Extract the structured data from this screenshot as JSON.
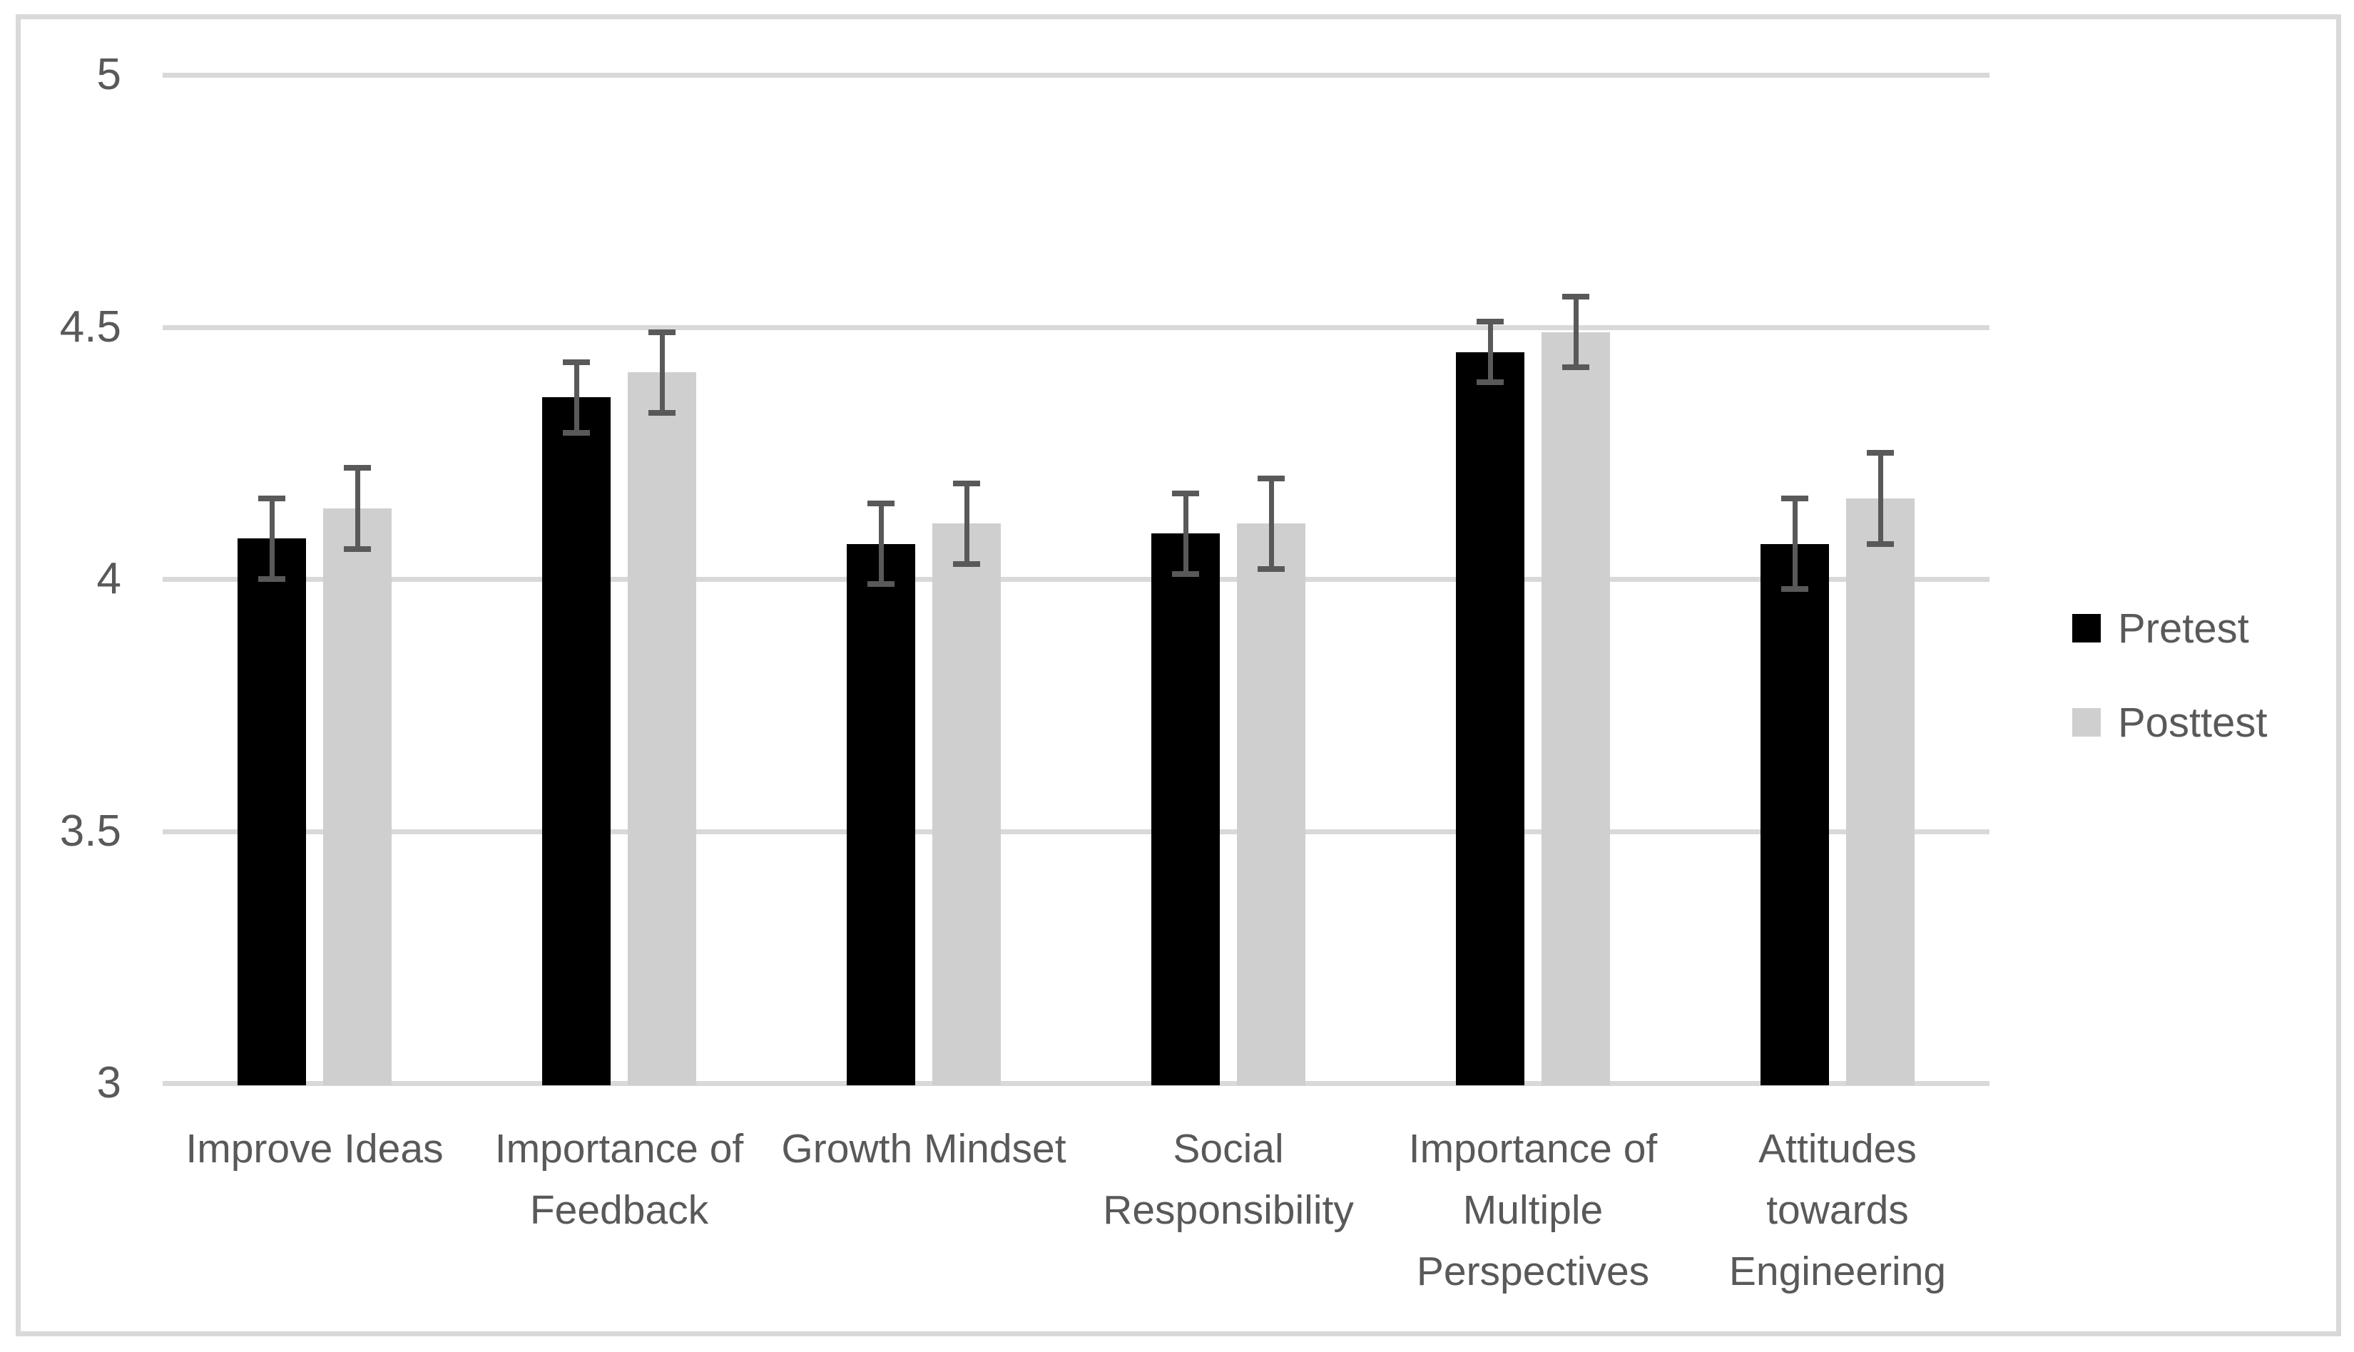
{
  "chart_data": {
    "type": "bar",
    "title": "",
    "xlabel": "",
    "ylabel": "",
    "categories": [
      "Improve Ideas",
      "Importance of Feedback",
      "Growth Mindset",
      "Social Responsibility",
      "Importance of Multiple Perspectives",
      "Attitudes towards Engineering"
    ],
    "series": [
      {
        "name": "Pretest",
        "color": "#000000",
        "values": [
          4.08,
          4.36,
          4.07,
          4.09,
          4.45,
          4.07
        ],
        "errors": [
          0.08,
          0.07,
          0.08,
          0.08,
          0.06,
          0.09
        ]
      },
      {
        "name": "Posttest",
        "color": "#cfcfcf",
        "values": [
          4.14,
          4.41,
          4.11,
          4.11,
          4.49,
          4.16
        ],
        "errors": [
          0.08,
          0.08,
          0.08,
          0.09,
          0.07,
          0.09
        ]
      }
    ],
    "ylim": [
      3,
      5
    ],
    "yticks": [
      5,
      4.5,
      4,
      3.5,
      3
    ],
    "ytick_labels": [
      "5",
      "4.5",
      "4",
      "3.5",
      "3"
    ],
    "grid": true,
    "error_bars": true,
    "legend_position": "right",
    "colors": {
      "text": "#595959",
      "gridline": "#d9d9d9",
      "error_bar": "#595959",
      "frame_border": "#d9d9d9",
      "background": "#ffffff"
    }
  },
  "legend": {
    "items": [
      {
        "label": "Pretest"
      },
      {
        "label": "Posttest"
      }
    ]
  }
}
